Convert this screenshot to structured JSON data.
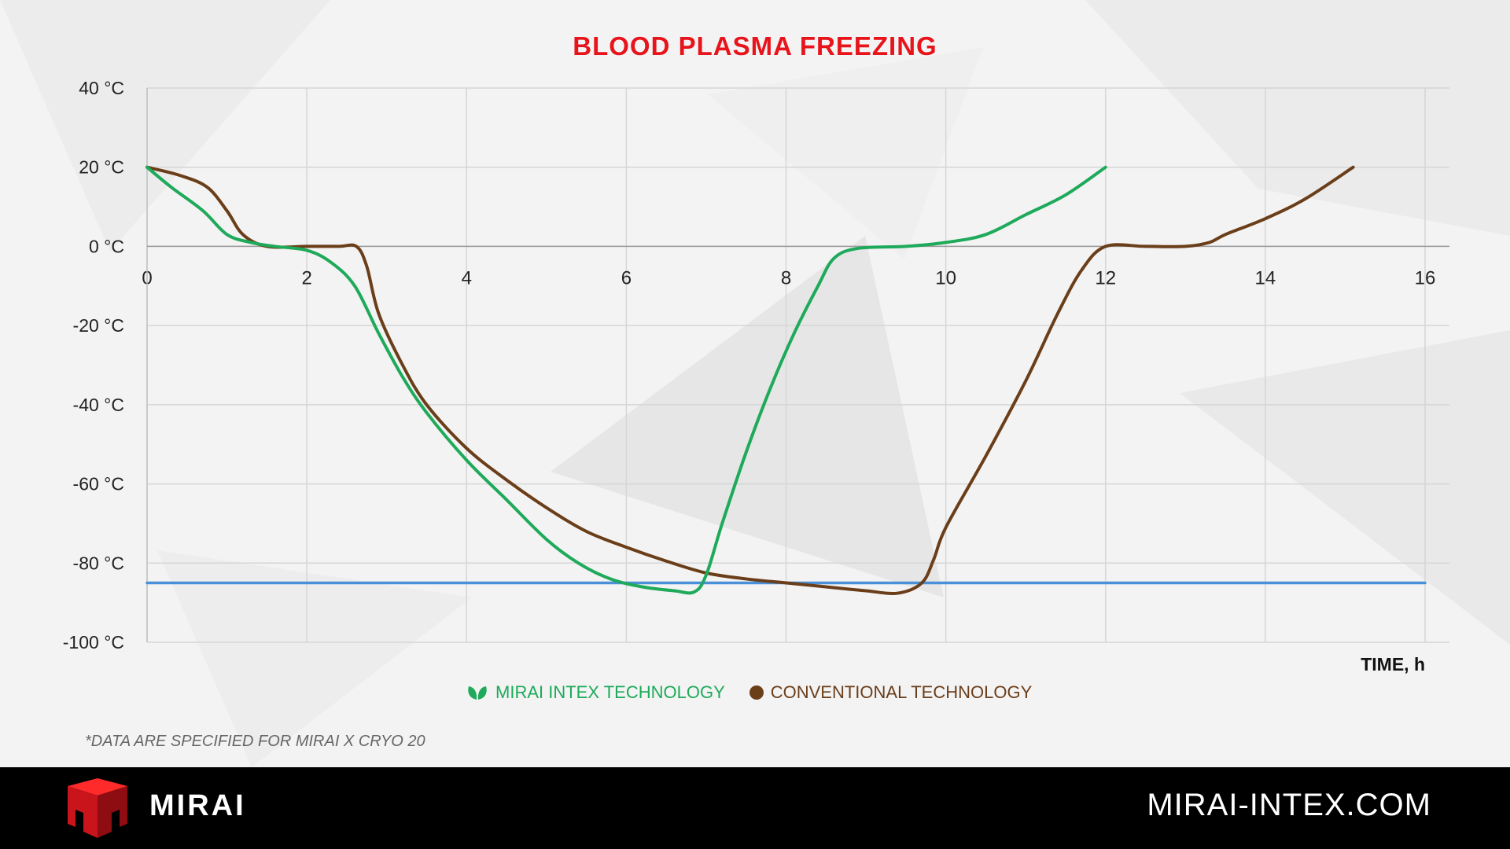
{
  "chart_data": {
    "type": "line",
    "title": "BLOOD PLASMA FREEZING",
    "xlabel": "TIME, h",
    "ylabel": "",
    "xlim": [
      0,
      16
    ],
    "ylim": [
      -100,
      40
    ],
    "x_ticks": [
      "0",
      "2",
      "4",
      "6",
      "8",
      "10",
      "12",
      "14",
      "16"
    ],
    "y_ticks": [
      "40 °C",
      "20 °C",
      "0 °C",
      "-20 °C",
      "-40 °C",
      "-60 °C",
      "-80 °C",
      "-100 °C"
    ],
    "grid": true,
    "legend_position": "bottom",
    "series": [
      {
        "name": "MIRAI INTEX TECHNOLOGY",
        "color": "#1eaa5a",
        "points": [
          [
            0,
            20
          ],
          [
            0.3,
            15
          ],
          [
            0.7,
            9
          ],
          [
            1.0,
            3
          ],
          [
            1.3,
            1
          ],
          [
            1.6,
            0
          ],
          [
            2.0,
            -1
          ],
          [
            2.3,
            -4
          ],
          [
            2.6,
            -10
          ],
          [
            2.9,
            -22
          ],
          [
            3.2,
            -33
          ],
          [
            3.5,
            -42
          ],
          [
            4.0,
            -54
          ],
          [
            4.5,
            -64
          ],
          [
            5.0,
            -74
          ],
          [
            5.4,
            -80
          ],
          [
            5.8,
            -84
          ],
          [
            6.2,
            -86
          ],
          [
            6.6,
            -87
          ],
          [
            6.85,
            -87.3
          ],
          [
            7.0,
            -83
          ],
          [
            7.2,
            -70
          ],
          [
            7.5,
            -52
          ],
          [
            7.8,
            -36
          ],
          [
            8.1,
            -22
          ],
          [
            8.4,
            -10
          ],
          [
            8.6,
            -3
          ],
          [
            8.9,
            -0.5
          ],
          [
            9.5,
            0
          ],
          [
            10.0,
            1
          ],
          [
            10.5,
            3
          ],
          [
            11.0,
            8
          ],
          [
            11.5,
            13
          ],
          [
            12.0,
            20
          ]
        ]
      },
      {
        "name": "CONVENTIONAL TECHNOLOGY",
        "color": "#6b3e1a",
        "points": [
          [
            0,
            20
          ],
          [
            0.4,
            18
          ],
          [
            0.75,
            15
          ],
          [
            1.0,
            9
          ],
          [
            1.2,
            3
          ],
          [
            1.5,
            0
          ],
          [
            2.0,
            0
          ],
          [
            2.4,
            0
          ],
          [
            2.62,
            0
          ],
          [
            2.75,
            -5
          ],
          [
            2.9,
            -17
          ],
          [
            3.2,
            -30
          ],
          [
            3.5,
            -40
          ],
          [
            4.0,
            -51
          ],
          [
            4.5,
            -59
          ],
          [
            5.0,
            -66
          ],
          [
            5.5,
            -72
          ],
          [
            6.0,
            -76
          ],
          [
            6.5,
            -79.5
          ],
          [
            7.0,
            -82.5
          ],
          [
            7.5,
            -84
          ],
          [
            8.0,
            -85
          ],
          [
            8.5,
            -86
          ],
          [
            9.0,
            -87
          ],
          [
            9.4,
            -87.6
          ],
          [
            9.7,
            -85
          ],
          [
            9.85,
            -79
          ],
          [
            10.0,
            -71
          ],
          [
            10.5,
            -53
          ],
          [
            11.0,
            -34
          ],
          [
            11.4,
            -17
          ],
          [
            11.7,
            -6
          ],
          [
            12.0,
            0
          ],
          [
            12.5,
            0
          ],
          [
            13.0,
            0
          ],
          [
            13.3,
            1
          ],
          [
            13.5,
            3
          ],
          [
            14.0,
            7
          ],
          [
            14.5,
            12
          ],
          [
            15.1,
            20
          ]
        ]
      },
      {
        "name": "",
        "color": "#4a90d9",
        "points": [
          [
            0,
            -85
          ],
          [
            16,
            -85
          ]
        ]
      }
    ]
  },
  "legend": {
    "items": [
      {
        "label": "MIRAI INTEX TECHNOLOGY",
        "icon": "leaf-icon"
      },
      {
        "label": "CONVENTIONAL TECHNOLOGY",
        "icon": "dot-icon"
      }
    ]
  },
  "footnote": "*DATA ARE SPECIFIED FOR MIRAI X CRYO 20",
  "footer": {
    "brand": "MIRAI",
    "website": "MIRAI-INTEX.COM"
  }
}
